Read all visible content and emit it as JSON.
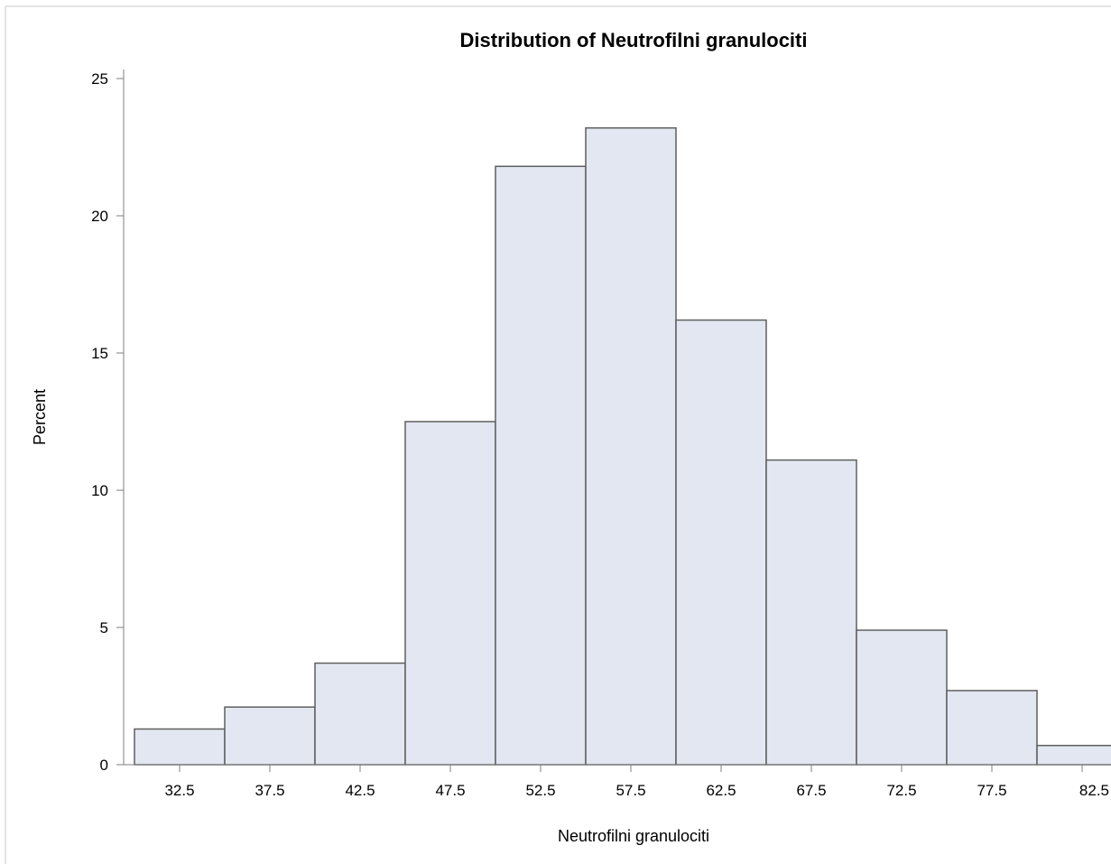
{
  "chart_data": {
    "type": "bar",
    "title": "Distribution of Neutrofilni granulociti",
    "xlabel": "Neutrofilni granulociti",
    "ylabel": "Percent",
    "categories": [
      "32.5",
      "37.5",
      "42.5",
      "47.5",
      "52.5",
      "57.5",
      "62.5",
      "67.5",
      "72.5",
      "77.5",
      "82.5"
    ],
    "values": [
      1.3,
      2.1,
      3.7,
      12.5,
      21.8,
      23.2,
      16.2,
      11.1,
      4.9,
      2.7,
      0.7
    ],
    "bin_width": 5,
    "ylim": [
      0,
      25
    ],
    "yticks": [
      "0",
      "5",
      "10",
      "15",
      "20",
      "25"
    ],
    "grid": false,
    "colors": {
      "bar_fill": "#e3e7f1",
      "bar_stroke": "#5f5f5f",
      "axis": "#7f7f7f",
      "frame": "#c8c8c8"
    }
  }
}
